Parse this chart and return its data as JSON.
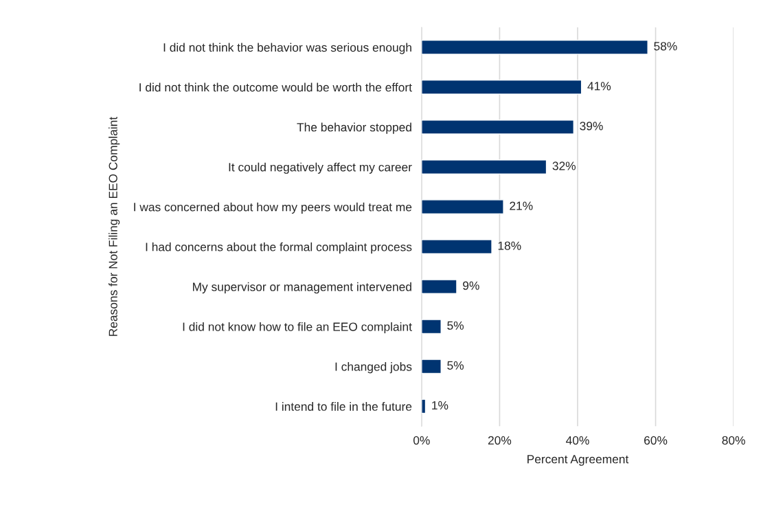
{
  "chart_data": {
    "type": "bar",
    "orientation": "horizontal",
    "xlabel": "Percent Agreement",
    "ylabel": "Reasons for Not Filing an EEO Complaint",
    "categories": [
      "I did not think the behavior was serious enough",
      "I did not think the outcome would be worth the effort",
      "The behavior stopped",
      "It could negatively affect my career",
      "I was concerned about how my peers would treat me",
      "I had concerns about the formal complaint process",
      "My supervisor or management intervened",
      "I did not know how to file an EEO complaint",
      "I changed jobs",
      "I intend to file in the future"
    ],
    "values": [
      58,
      41,
      39,
      32,
      21,
      18,
      9,
      5,
      5,
      1
    ],
    "value_labels": [
      "58%",
      "41%",
      "39%",
      "32%",
      "21%",
      "18%",
      "9%",
      "5%",
      "5%",
      "1%"
    ],
    "color": "#003471",
    "xlim": [
      0,
      80
    ],
    "xticks": [
      {
        "value": 0,
        "label": "0%"
      },
      {
        "value": 20,
        "label": "20%"
      },
      {
        "value": 40,
        "label": "40%"
      },
      {
        "value": 60,
        "label": "60%"
      },
      {
        "value": 80,
        "label": "80%"
      }
    ],
    "grid": "x",
    "legend": false
  }
}
